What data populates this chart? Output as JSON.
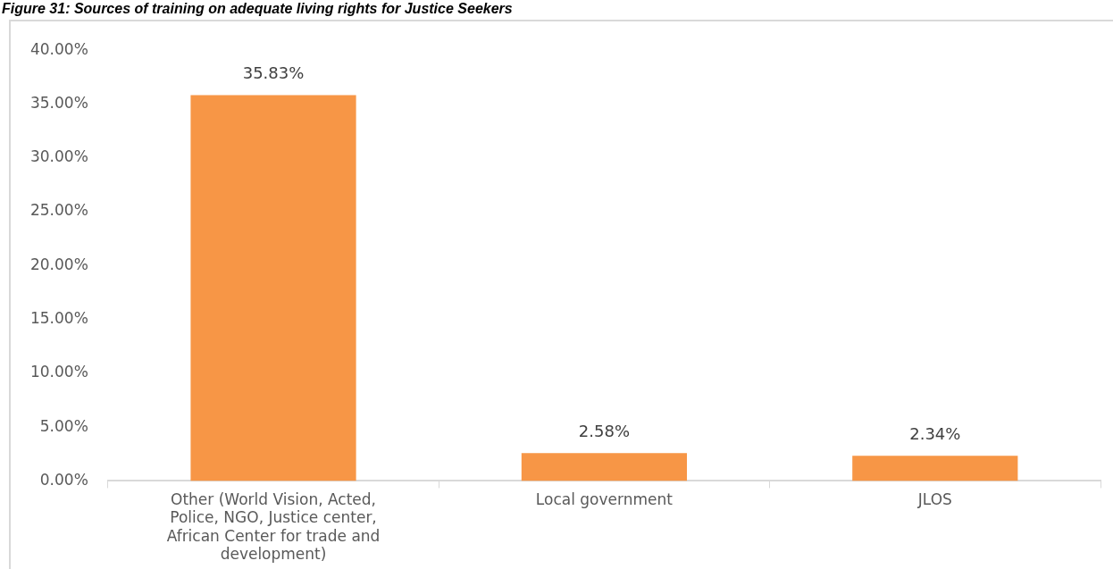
{
  "chart_data": {
    "type": "bar",
    "title": "Figure 31: Sources of training on adequate living rights for Justice Seekers",
    "categories": [
      "Other (World Vision, Acted, Police, NGO, Justice center, African Center for trade and development)",
      "Local government",
      "JLOS"
    ],
    "values": [
      35.83,
      2.58,
      2.34
    ],
    "color": "#f79646",
    "value_labels": [
      "35.83%",
      "2.58%",
      "2.34%"
    ],
    "grid": false,
    "legend": false,
    "ylim": [
      0,
      40
    ],
    "yticks": [
      {
        "value": 0,
        "label": "0.00%"
      },
      {
        "value": 5,
        "label": "5.00%"
      },
      {
        "value": 10,
        "label": "10.00%"
      },
      {
        "value": 15,
        "label": "15.00%"
      },
      {
        "value": 20,
        "label": "20.00%"
      },
      {
        "value": 25,
        "label": "25.00%"
      },
      {
        "value": 30,
        "label": "30.00%"
      },
      {
        "value": 35,
        "label": "35.00%"
      },
      {
        "value": 40,
        "label": "40.00%"
      }
    ]
  }
}
